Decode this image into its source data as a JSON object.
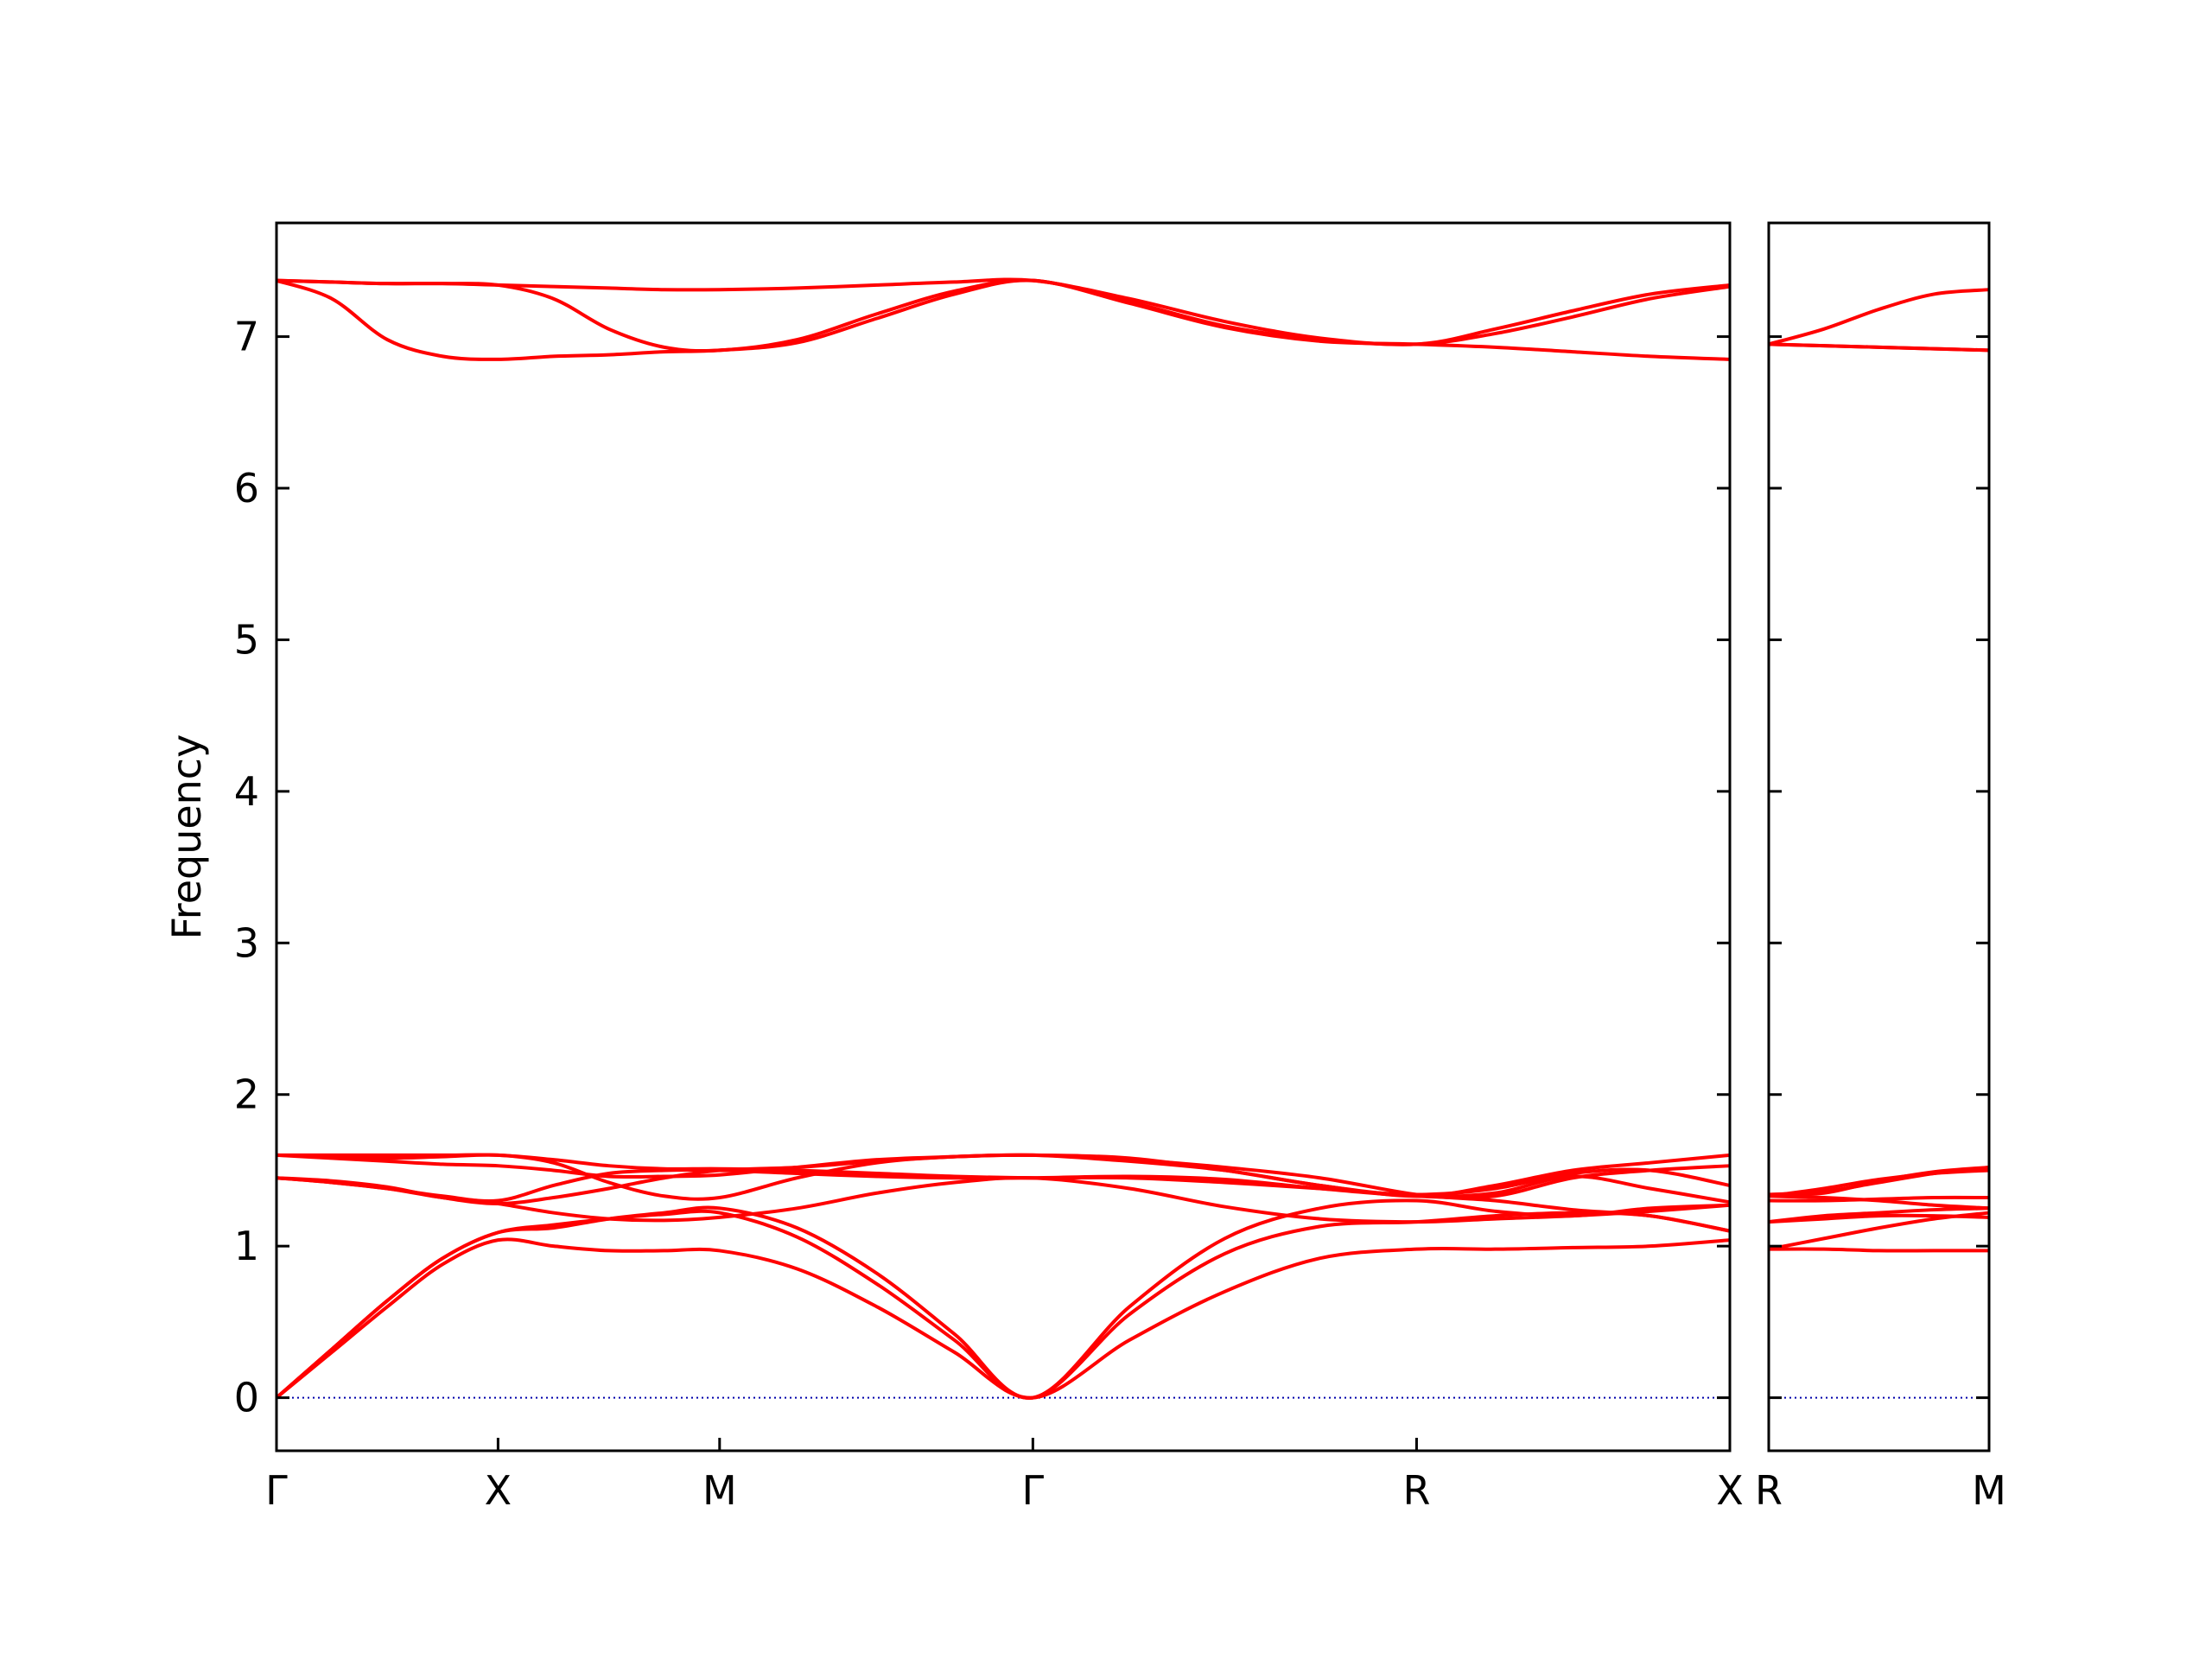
{
  "chart_data": [
    {
      "type": "line",
      "ylabel": "Frequency",
      "x": [
        0,
        0.25,
        0.5,
        0.75,
        1,
        1.25,
        1.5,
        1.75,
        2,
        2.35,
        2.71,
        3.06,
        3.414,
        3.85,
        4.28,
        4.71,
        5.146,
        5.5,
        5.85,
        6.2,
        6.56
      ],
      "xlim": [
        0,
        6.56
      ],
      "xticks": [
        {
          "value": 0,
          "label": "Γ"
        },
        {
          "value": 1,
          "label": "X"
        },
        {
          "value": 2,
          "label": "M"
        },
        {
          "value": 3.414,
          "label": "Γ"
        },
        {
          "value": 5.146,
          "label": "R"
        },
        {
          "value": 6.56,
          "label": "X"
        }
      ],
      "ylim": [
        -0.35,
        7.75
      ],
      "yticks": [
        0,
        1,
        2,
        3,
        4,
        5,
        6,
        7
      ],
      "hline": {
        "value": 0,
        "color": "#0000aa"
      },
      "series": [
        {
          "color": "#ff0000",
          "values": [
            7.37,
            7.36,
            7.35,
            7.35,
            7.34,
            7.33,
            7.32,
            7.31,
            7.31,
            7.32,
            7.34,
            7.36,
            7.37,
            7.25,
            7.1,
            6.99,
            6.95,
            7.05,
            7.17,
            7.28,
            7.34
          ]
        },
        {
          "color": "#ff0000",
          "values": [
            7.37,
            7.36,
            7.35,
            7.35,
            7.34,
            7.25,
            7.05,
            6.93,
            6.91,
            6.98,
            7.15,
            7.3,
            7.37,
            7.23,
            7.07,
            6.98,
            6.95,
            7.02,
            7.13,
            7.25,
            7.33
          ]
        },
        {
          "color": "#ff0000",
          "values": [
            7.37,
            7.25,
            6.98,
            6.87,
            6.85,
            6.87,
            6.88,
            6.9,
            6.91,
            6.96,
            7.12,
            7.28,
            7.37,
            7.22,
            7.06,
            6.97,
            6.95,
            6.93,
            6.9,
            6.87,
            6.85
          ]
        },
        {
          "color": "#ff0000",
          "values": [
            0,
            0.3,
            0.6,
            0.88,
            1.04,
            1.0,
            0.97,
            0.97,
            0.97,
            0.85,
            0.6,
            0.3,
            0,
            0.38,
            0.7,
            0.92,
            0.98,
            0.98,
            0.99,
            1.0,
            1.04
          ]
        },
        {
          "color": "#ff0000",
          "values": [
            0,
            0.32,
            0.64,
            0.92,
            1.09,
            1.14,
            1.18,
            1.21,
            1.22,
            1.06,
            0.75,
            0.38,
            0,
            0.55,
            0.95,
            1.13,
            1.16,
            1.2,
            1.22,
            1.2,
            1.1
          ]
        },
        {
          "color": "#ff0000",
          "values": [
            0,
            0.32,
            0.64,
            0.92,
            1.09,
            1.12,
            1.18,
            1.22,
            1.25,
            1.12,
            0.82,
            0.42,
            0,
            0.6,
            1.05,
            1.25,
            1.3,
            1.23,
            1.2,
            1.25,
            1.27
          ]
        },
        {
          "color": "#ff0000",
          "values": [
            1.45,
            1.42,
            1.38,
            1.32,
            1.28,
            1.22,
            1.18,
            1.17,
            1.19,
            1.25,
            1.35,
            1.42,
            1.45,
            1.38,
            1.26,
            1.18,
            1.16,
            1.18,
            1.2,
            1.23,
            1.27
          ]
        },
        {
          "color": "#ff0000",
          "values": [
            1.45,
            1.42,
            1.38,
            1.33,
            1.3,
            1.4,
            1.48,
            1.5,
            1.5,
            1.48,
            1.46,
            1.45,
            1.45,
            1.46,
            1.44,
            1.38,
            1.33,
            1.33,
            1.45,
            1.5,
            1.53
          ]
        },
        {
          "color": "#ff0000",
          "values": [
            1.45,
            1.43,
            1.39,
            1.32,
            1.28,
            1.32,
            1.38,
            1.45,
            1.5,
            1.52,
            1.56,
            1.59,
            1.6,
            1.56,
            1.5,
            1.4,
            1.33,
            1.4,
            1.5,
            1.55,
            1.6
          ]
        },
        {
          "color": "#ff0000",
          "values": [
            1.6,
            1.59,
            1.58,
            1.59,
            1.6,
            1.55,
            1.42,
            1.33,
            1.32,
            1.45,
            1.55,
            1.59,
            1.6,
            1.58,
            1.5,
            1.4,
            1.33,
            1.35,
            1.46,
            1.38,
            1.29
          ]
        },
        {
          "color": "#ff0000",
          "values": [
            1.6,
            1.58,
            1.56,
            1.54,
            1.53,
            1.5,
            1.46,
            1.46,
            1.47,
            1.52,
            1.57,
            1.59,
            1.6,
            1.57,
            1.52,
            1.45,
            1.34,
            1.3,
            1.24,
            1.2,
            1.1
          ]
        },
        {
          "color": "#ff0000",
          "values": [
            1.6,
            1.6,
            1.6,
            1.6,
            1.6,
            1.57,
            1.53,
            1.51,
            1.51,
            1.5,
            1.48,
            1.46,
            1.45,
            1.45,
            1.42,
            1.38,
            1.34,
            1.38,
            1.48,
            1.5,
            1.4
          ]
        }
      ]
    },
    {
      "type": "line",
      "x": [
        0,
        0.25,
        0.5,
        0.75,
        1
      ],
      "xlim": [
        0,
        1
      ],
      "xticks": [
        {
          "value": 0,
          "label": "R"
        },
        {
          "value": 1,
          "label": "M"
        }
      ],
      "ylim": [
        -0.35,
        7.75
      ],
      "yticks": [
        0,
        1,
        2,
        3,
        4,
        5,
        6,
        7
      ],
      "hline": {
        "value": 0,
        "color": "#0000aa"
      },
      "series": [
        {
          "color": "#ff0000",
          "values": [
            6.95,
            7.05,
            7.18,
            7.28,
            7.31
          ]
        },
        {
          "color": "#ff0000",
          "values": [
            6.95,
            6.94,
            6.93,
            6.92,
            6.91
          ]
        },
        {
          "color": "#ff0000",
          "values": [
            6.95,
            6.94,
            6.93,
            6.92,
            6.91
          ]
        },
        {
          "color": "#ff0000",
          "values": [
            0.98,
            0.98,
            0.97,
            0.97,
            0.97
          ]
        },
        {
          "color": "#ff0000",
          "values": [
            0.98,
            1.05,
            1.12,
            1.18,
            1.22
          ]
        },
        {
          "color": "#ff0000",
          "values": [
            1.16,
            1.2,
            1.22,
            1.24,
            1.25
          ]
        },
        {
          "color": "#ff0000",
          "values": [
            1.16,
            1.18,
            1.2,
            1.2,
            1.19
          ]
        },
        {
          "color": "#ff0000",
          "values": [
            1.3,
            1.3,
            1.31,
            1.32,
            1.32
          ]
        },
        {
          "color": "#ff0000",
          "values": [
            1.33,
            1.38,
            1.44,
            1.48,
            1.5
          ]
        },
        {
          "color": "#ff0000",
          "values": [
            1.33,
            1.32,
            1.3,
            1.27,
            1.25
          ]
        },
        {
          "color": "#ff0000",
          "values": [
            1.34,
            1.36,
            1.42,
            1.48,
            1.52
          ]
        },
        {
          "color": "#ff0000",
          "values": [
            1.34,
            1.35,
            1.43,
            1.49,
            1.52
          ]
        }
      ]
    }
  ]
}
